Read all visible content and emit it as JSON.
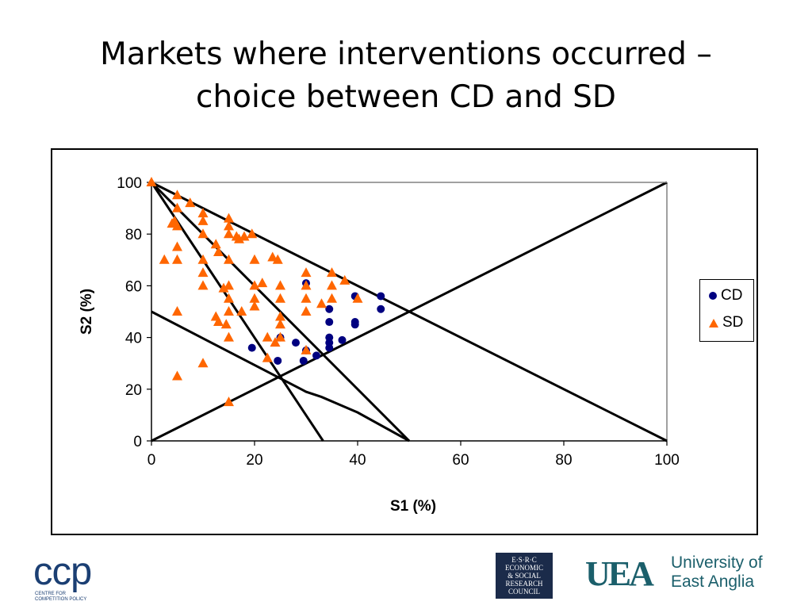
{
  "title": {
    "line1": "Markets where interventions occurred –",
    "line2": "choice between CD and SD"
  },
  "chart_data": {
    "type": "scatter",
    "xlabel": "S1 (%)",
    "ylabel": "S2 (%)",
    "xlim": [
      0,
      100
    ],
    "ylim": [
      0,
      100
    ],
    "xticks": [
      0,
      20,
      40,
      60,
      80,
      100
    ],
    "yticks": [
      0,
      20,
      40,
      60,
      80,
      100
    ],
    "grid": false,
    "legend_position": "right",
    "series": [
      {
        "name": "CD",
        "marker": "circle",
        "color": "#000080",
        "points": [
          [
            19.5,
            36
          ],
          [
            24.5,
            31
          ],
          [
            25,
            40
          ],
          [
            28,
            38
          ],
          [
            29.5,
            31
          ],
          [
            30,
            35
          ],
          [
            30,
            61
          ],
          [
            32,
            33
          ],
          [
            34.5,
            36
          ],
          [
            34.5,
            38
          ],
          [
            34.5,
            40
          ],
          [
            34.5,
            46
          ],
          [
            34.5,
            51
          ],
          [
            37,
            39
          ],
          [
            39.5,
            45
          ],
          [
            39.5,
            46
          ],
          [
            39.5,
            56
          ],
          [
            44.5,
            51
          ],
          [
            44.5,
            56
          ]
        ]
      },
      {
        "name": "SD",
        "marker": "triangle",
        "color": "#ff6600",
        "points": [
          [
            0,
            100
          ],
          [
            2.5,
            70
          ],
          [
            4,
            84
          ],
          [
            4.5,
            85
          ],
          [
            5,
            95
          ],
          [
            5,
            90
          ],
          [
            5,
            83
          ],
          [
            5,
            75
          ],
          [
            5,
            70
          ],
          [
            5,
            50
          ],
          [
            5,
            25
          ],
          [
            7.5,
            92
          ],
          [
            10,
            88
          ],
          [
            10,
            85
          ],
          [
            10,
            80
          ],
          [
            10,
            70
          ],
          [
            10,
            65
          ],
          [
            10,
            60
          ],
          [
            10,
            30
          ],
          [
            12.5,
            76
          ],
          [
            12.5,
            48
          ],
          [
            13,
            73
          ],
          [
            13,
            46
          ],
          [
            14,
            59
          ],
          [
            14.5,
            45
          ],
          [
            15,
            86
          ],
          [
            15,
            83
          ],
          [
            15,
            80
          ],
          [
            15,
            70
          ],
          [
            15,
            60
          ],
          [
            15,
            55
          ],
          [
            15,
            50
          ],
          [
            15,
            40
          ],
          [
            15,
            15
          ],
          [
            16.5,
            79
          ],
          [
            17,
            78
          ],
          [
            17.5,
            50
          ],
          [
            18,
            79
          ],
          [
            19.5,
            80
          ],
          [
            20,
            70
          ],
          [
            20,
            60
          ],
          [
            20,
            55
          ],
          [
            20,
            52
          ],
          [
            21.5,
            61
          ],
          [
            22.5,
            40
          ],
          [
            22.5,
            32
          ],
          [
            23.5,
            71
          ],
          [
            24,
            38
          ],
          [
            24.5,
            70
          ],
          [
            25,
            60
          ],
          [
            25,
            55
          ],
          [
            25,
            48
          ],
          [
            25,
            45
          ],
          [
            25,
            40
          ],
          [
            30,
            65
          ],
          [
            30,
            60
          ],
          [
            30,
            55
          ],
          [
            30,
            50
          ],
          [
            30,
            35
          ],
          [
            33,
            53
          ],
          [
            35,
            65
          ],
          [
            35,
            60
          ],
          [
            35,
            55
          ],
          [
            37.5,
            62
          ],
          [
            40,
            55
          ]
        ]
      }
    ],
    "lines": [
      {
        "from": [
          0,
          100
        ],
        "to": [
          100,
          0
        ]
      },
      {
        "from": [
          0,
          100
        ],
        "to": [
          50,
          0
        ]
      },
      {
        "from": [
          0,
          100
        ],
        "to": [
          33.3,
          0
        ]
      },
      {
        "from": [
          0,
          0
        ],
        "to": [
          100,
          100
        ]
      },
      {
        "from": [
          0,
          50
        ],
        "to": [
          50,
          0
        ],
        "via": [
          [
            30,
            19
          ],
          [
            33,
            17
          ],
          [
            40,
            11
          ]
        ]
      },
      {
        "from": [
          0,
          100
        ],
        "to": [
          100,
          100
        ]
      }
    ]
  },
  "footer": {
    "ccp": {
      "mark": "ccp",
      "sub1": "Centre for",
      "sub2": "Competition Policy"
    },
    "esrc": {
      "line1": "E·S·R·C",
      "line2": "ECONOMIC",
      "line3": "& SOCIAL",
      "line4": "RESEARCH",
      "line5": "COUNCIL"
    },
    "uea": {
      "mark": "UEA",
      "name1": "University of",
      "name2": "East Anglia",
      "color": "#1b5f6b"
    }
  }
}
